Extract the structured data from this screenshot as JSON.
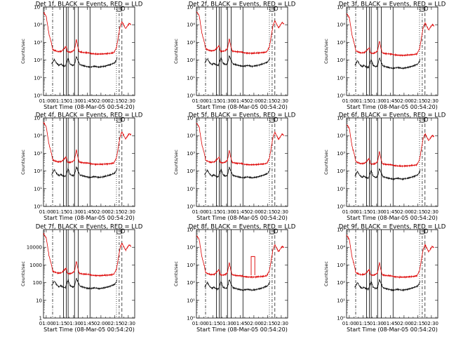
{
  "chart_data": {
    "type": "line",
    "shared": {
      "xlabel": "Start Time (08-Mar-05 00:54:20)",
      "ylabel": "Counts/sec",
      "x_ticks": [
        "01:00",
        "01:15",
        "01:30",
        "01:45",
        "02:00",
        "02:15",
        "02:30"
      ],
      "x_tick_minutes": [
        0,
        15,
        30,
        45,
        60,
        75,
        90
      ],
      "x_range_minutes": [
        -3,
        97
      ],
      "y_scale": "log",
      "ylim": [
        1,
        100000
      ],
      "series": [
        {
          "name": "BLACK = Events",
          "color": "#000000"
        },
        {
          "name": "RED = LLD",
          "color": "#dd0000"
        }
      ],
      "vertical_lines": {
        "dash_dot_minutes": [
          7,
          80
        ],
        "solid_minutes": [
          19,
          22,
          24,
          31,
          35,
          48
        ],
        "dotted_minutes": [
          77
        ],
        "long_dash_minutes": [
          83
        ]
      },
      "red_profile": [
        [
          -3,
          50000
        ],
        [
          0,
          30000
        ],
        [
          3,
          3000
        ],
        [
          6,
          800
        ],
        [
          7,
          400
        ],
        [
          9,
          350
        ],
        [
          13,
          300
        ],
        [
          17,
          320
        ],
        [
          22,
          600
        ],
        [
          23,
          300
        ],
        [
          26,
          280
        ],
        [
          28,
          300
        ],
        [
          31,
          380
        ],
        [
          33,
          1500
        ],
        [
          34,
          800
        ],
        [
          36,
          300
        ],
        [
          40,
          270
        ],
        [
          46,
          260
        ],
        [
          50,
          230
        ],
        [
          55,
          220
        ],
        [
          60,
          220
        ],
        [
          65,
          230
        ],
        [
          70,
          240
        ],
        [
          74,
          260
        ],
        [
          77,
          500
        ],
        [
          79,
          2000
        ],
        [
          81,
          8000
        ],
        [
          83,
          15000
        ],
        [
          87,
          6000
        ],
        [
          91,
          12000
        ],
        [
          93,
          10000
        ]
      ],
      "black_profile": [
        [
          6,
          60
        ],
        [
          9,
          110
        ],
        [
          11,
          70
        ],
        [
          14,
          50
        ],
        [
          16,
          60
        ],
        [
          18,
          50
        ],
        [
          21,
          45
        ],
        [
          24,
          130
        ],
        [
          26,
          60
        ],
        [
          29,
          50
        ],
        [
          31,
          55
        ],
        [
          33,
          160
        ],
        [
          35,
          90
        ],
        [
          37,
          55
        ],
        [
          43,
          45
        ],
        [
          48,
          40
        ],
        [
          53,
          45
        ],
        [
          58,
          40
        ],
        [
          64,
          45
        ],
        [
          70,
          55
        ],
        [
          75,
          70
        ],
        [
          77,
          100
        ],
        [
          78,
          150
        ]
      ]
    },
    "panels": [
      {
        "title": "Det 1f, BLACK = Events, RED = LLD",
        "ytick_labels": [
          "10⁰",
          "10¹",
          "10²",
          "10³",
          "10⁴",
          "10⁵"
        ],
        "show_ylabel": true
      },
      {
        "title": "Det 2f, BLACK = Events, RED = LLD",
        "ytick_labels": [
          "10⁰",
          "10¹",
          "10²",
          "10³",
          "10⁴",
          "10⁵"
        ],
        "show_ylabel": true
      },
      {
        "title": "Det 3f, BLACK = Events, RED = LLD",
        "ytick_labels": [
          "10⁰",
          "10¹",
          "10²",
          "10³",
          "10⁴",
          "10⁵"
        ],
        "show_ylabel": true
      },
      {
        "title": "Det 4f, BLACK = Events, RED = LLD",
        "ytick_labels": [
          "10⁰",
          "10¹",
          "10²",
          "10³",
          "10⁴",
          "10⁵"
        ],
        "show_ylabel": true
      },
      {
        "title": "Det 5f, BLACK = Events, RED = LLD",
        "ytick_labels": [
          "10⁰",
          "10¹",
          "10²",
          "10³",
          "10⁴",
          "10⁵"
        ],
        "show_ylabel": true
      },
      {
        "title": "Det 6f, BLACK = Events, RED = LLD",
        "ytick_labels": [
          "10⁰",
          "10¹",
          "10²",
          "10³",
          "10⁴",
          "10⁵"
        ],
        "show_ylabel": true
      },
      {
        "title": "Det 7f, BLACK = Events, RED = LLD",
        "ytick_labels": [
          "1",
          "10",
          "100",
          "1000",
          "10000"
        ],
        "show_ylabel": true
      },
      {
        "title": "Det 8f, BLACK = Events, RED = LLD",
        "ytick_labels": [
          "10⁰",
          "10¹",
          "10²",
          "10³",
          "10⁴",
          "10⁵"
        ],
        "show_ylabel": true,
        "spike": {
          "start_minutes": 57,
          "end_minutes": 61,
          "value": 3000
        }
      },
      {
        "title": "Det 9f, BLACK = Events, RED = LLD",
        "ytick_labels": [
          "10⁰",
          "10¹",
          "10²",
          "10³",
          "10⁴",
          "10⁵"
        ],
        "show_ylabel": true
      }
    ]
  }
}
